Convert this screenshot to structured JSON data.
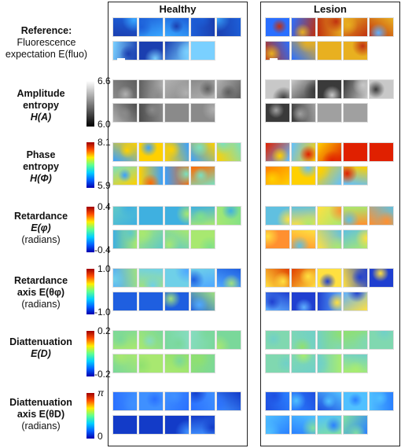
{
  "panels": {
    "healthy": "Healthy",
    "lesion": "Lesion"
  },
  "rows": [
    {
      "key": "reference",
      "label_bold": "Reference:",
      "label_lines": [
        "Fluorescence",
        "expectation E(fluo)"
      ],
      "colorbar": null
    },
    {
      "key": "amplitude_entropy",
      "label_bold": "Amplitude",
      "label_lines": [
        "entropy"
      ],
      "symbol": "H(A)",
      "colorbar": {
        "max": "6.6",
        "min": "6.0",
        "map": "gray"
      }
    },
    {
      "key": "phase_entropy",
      "label_bold": "Phase",
      "label_lines": [
        "entropy"
      ],
      "symbol": "H(Φ)",
      "colorbar": {
        "max": "8.1",
        "min": "5.9",
        "map": "jet"
      }
    },
    {
      "key": "retardance",
      "label_bold": "Retardance",
      "symbol": "E(φ)",
      "units": "(radians)",
      "colorbar": {
        "max": "0.4",
        "min": "-0.4",
        "map": "jet"
      }
    },
    {
      "key": "retardance_axis",
      "label_bold": "Retardance",
      "symbol": "axis E(θφ)",
      "units": "(radians)",
      "colorbar": {
        "max": "1.0",
        "min": "-1.0",
        "map": "jet"
      }
    },
    {
      "key": "diattenuation",
      "label_bold": "Diattenuation",
      "symbol": "E(D)",
      "colorbar": {
        "max": "0.2",
        "min": "-0.2",
        "map": "jet"
      }
    },
    {
      "key": "diattenuation_axis",
      "label_bold": "Diattenuation",
      "symbol": "axis E(θD)",
      "units": "(radians)",
      "colorbar": {
        "max": "π",
        "min": "0",
        "map": "jet"
      }
    }
  ],
  "colors": {
    "jet_stops": [
      "#0000b0",
      "#0060ff",
      "#00d0ff",
      "#60ff90",
      "#ffee00",
      "#ff5000",
      "#a00000"
    ],
    "gray_stops": [
      "#000000",
      "#ffffff"
    ],
    "frame": "#222222"
  }
}
